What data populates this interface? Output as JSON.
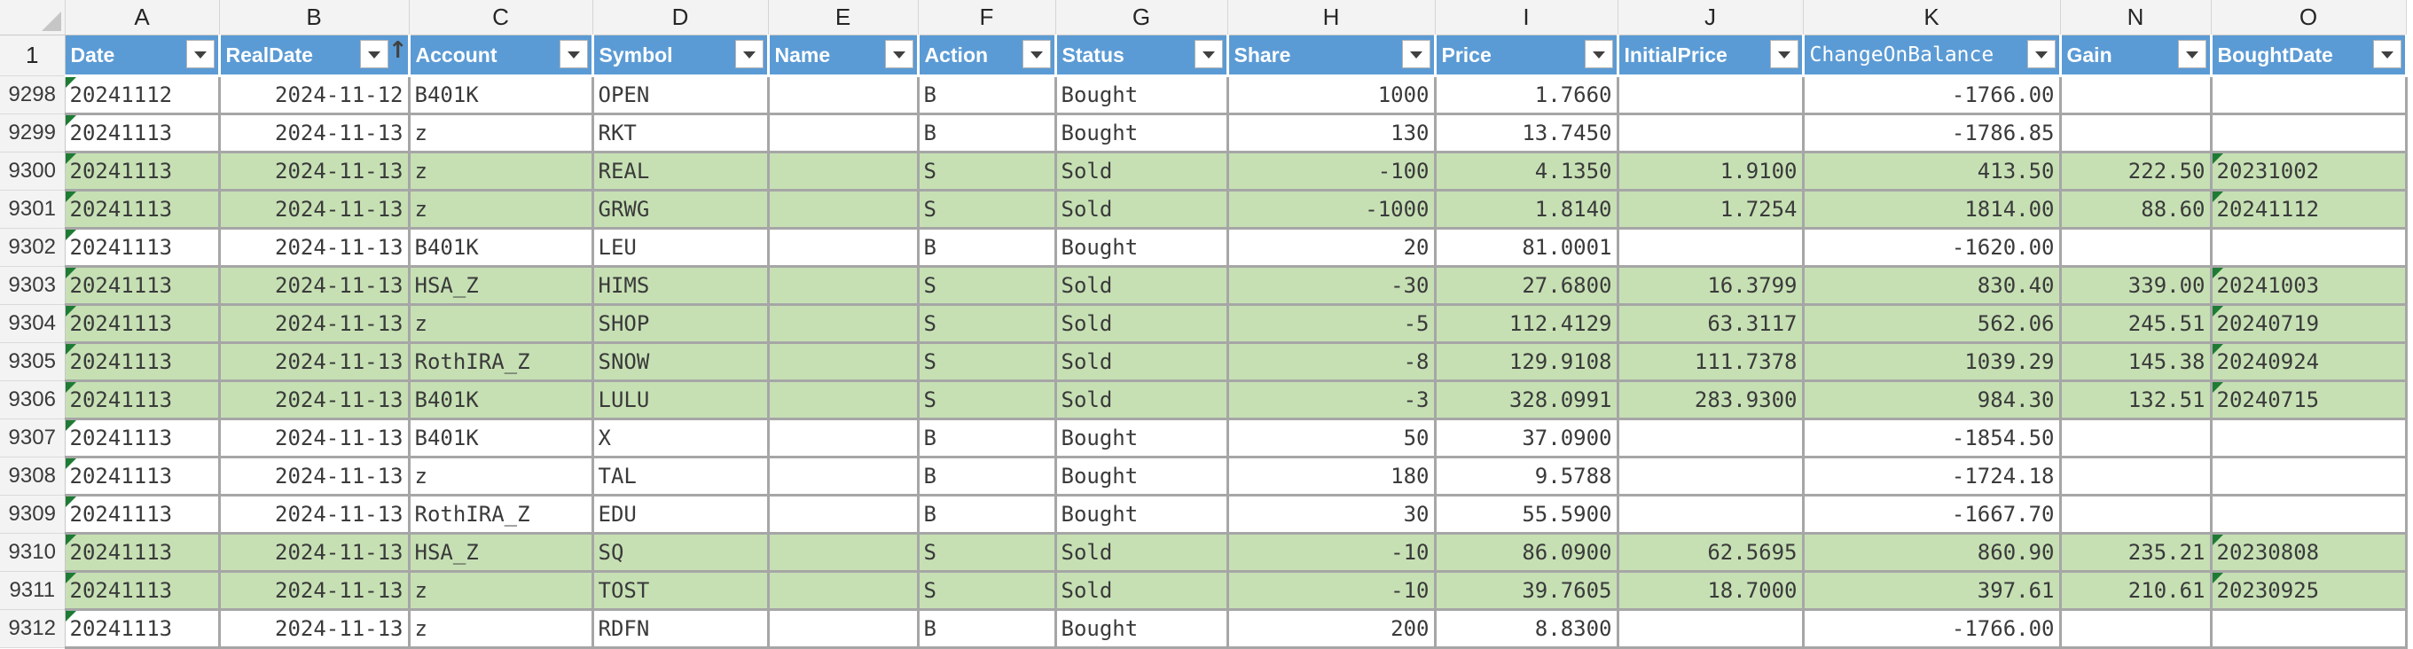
{
  "columns": [
    {
      "letter": "A",
      "header": "Date",
      "filter": true
    },
    {
      "letter": "B",
      "header": "RealDate",
      "filter": true,
      "sorted": "ascending"
    },
    {
      "letter": "C",
      "header": "Account",
      "filter": true
    },
    {
      "letter": "D",
      "header": "Symbol",
      "filter": true
    },
    {
      "letter": "E",
      "header": "Name",
      "filter": true
    },
    {
      "letter": "F",
      "header": "Action",
      "filter": true
    },
    {
      "letter": "G",
      "header": "Status",
      "filter": true
    },
    {
      "letter": "H",
      "header": "Share",
      "filter": true
    },
    {
      "letter": "I",
      "header": "Price",
      "filter": true
    },
    {
      "letter": "J",
      "header": "InitialPrice",
      "filter": true
    },
    {
      "letter": "K",
      "header": "ChangeOnBalance",
      "filter": true
    },
    {
      "letter": "N",
      "header": "Gain",
      "filter": true
    },
    {
      "letter": "O",
      "header": "BoughtDate",
      "filter": true
    }
  ],
  "header_row_number": "1",
  "rows": [
    {
      "num": "9298",
      "status_fill": "bought",
      "date": "20241112",
      "realdate": "2024-11-12",
      "account": "B401K",
      "symbol": "OPEN",
      "name": "",
      "action": "B",
      "status": "Bought",
      "share": "1000",
      "price": "1.7660",
      "initialprice": "",
      "changeonbalance": "-1766.00",
      "gain": "",
      "boughtdate": ""
    },
    {
      "num": "9299",
      "status_fill": "bought",
      "date": "20241113",
      "realdate": "2024-11-13",
      "account": "z",
      "symbol": "RKT",
      "name": "",
      "action": "B",
      "status": "Bought",
      "share": "130",
      "price": "13.7450",
      "initialprice": "",
      "changeonbalance": "-1786.85",
      "gain": "",
      "boughtdate": ""
    },
    {
      "num": "9300",
      "status_fill": "sold",
      "date": "20241113",
      "realdate": "2024-11-13",
      "account": "z",
      "symbol": "REAL",
      "name": "",
      "action": "S",
      "status": "Sold",
      "share": "-100",
      "price": "4.1350",
      "initialprice": "1.9100",
      "changeonbalance": "413.50",
      "gain": "222.50",
      "boughtdate": "20231002"
    },
    {
      "num": "9301",
      "status_fill": "sold",
      "date": "20241113",
      "realdate": "2024-11-13",
      "account": "z",
      "symbol": "GRWG",
      "name": "",
      "action": "S",
      "status": "Sold",
      "share": "-1000",
      "price": "1.8140",
      "initialprice": "1.7254",
      "changeonbalance": "1814.00",
      "gain": "88.60",
      "boughtdate": "20241112"
    },
    {
      "num": "9302",
      "status_fill": "bought",
      "date": "20241113",
      "realdate": "2024-11-13",
      "account": "B401K",
      "symbol": "LEU",
      "name": "",
      "action": "B",
      "status": "Bought",
      "share": "20",
      "price": "81.0001",
      "initialprice": "",
      "changeonbalance": "-1620.00",
      "gain": "",
      "boughtdate": ""
    },
    {
      "num": "9303",
      "status_fill": "sold",
      "date": "20241113",
      "realdate": "2024-11-13",
      "account": "HSA_Z",
      "symbol": "HIMS",
      "name": "",
      "action": "S",
      "status": "Sold",
      "share": "-30",
      "price": "27.6800",
      "initialprice": "16.3799",
      "changeonbalance": "830.40",
      "gain": "339.00",
      "boughtdate": "20241003"
    },
    {
      "num": "9304",
      "status_fill": "sold",
      "date": "20241113",
      "realdate": "2024-11-13",
      "account": "z",
      "symbol": "SHOP",
      "name": "",
      "action": "S",
      "status": "Sold",
      "share": "-5",
      "price": "112.4129",
      "initialprice": "63.3117",
      "changeonbalance": "562.06",
      "gain": "245.51",
      "boughtdate": "20240719"
    },
    {
      "num": "9305",
      "status_fill": "sold",
      "date": "20241113",
      "realdate": "2024-11-13",
      "account": "RothIRA_Z",
      "symbol": "SNOW",
      "name": "",
      "action": "S",
      "status": "Sold",
      "share": "-8",
      "price": "129.9108",
      "initialprice": "111.7378",
      "changeonbalance": "1039.29",
      "gain": "145.38",
      "boughtdate": "20240924"
    },
    {
      "num": "9306",
      "status_fill": "sold",
      "date": "20241113",
      "realdate": "2024-11-13",
      "account": "B401K",
      "symbol": "LULU",
      "name": "",
      "action": "S",
      "status": "Sold",
      "share": "-3",
      "price": "328.0991",
      "initialprice": "283.9300",
      "changeonbalance": "984.30",
      "gain": "132.51",
      "boughtdate": "20240715"
    },
    {
      "num": "9307",
      "status_fill": "bought",
      "date": "20241113",
      "realdate": "2024-11-13",
      "account": "B401K",
      "symbol": "X",
      "name": "",
      "action": "B",
      "status": "Bought",
      "share": "50",
      "price": "37.0900",
      "initialprice": "",
      "changeonbalance": "-1854.50",
      "gain": "",
      "boughtdate": ""
    },
    {
      "num": "9308",
      "status_fill": "bought",
      "date": "20241113",
      "realdate": "2024-11-13",
      "account": "z",
      "symbol": "TAL",
      "name": "",
      "action": "B",
      "status": "Bought",
      "share": "180",
      "price": "9.5788",
      "initialprice": "",
      "changeonbalance": "-1724.18",
      "gain": "",
      "boughtdate": ""
    },
    {
      "num": "9309",
      "status_fill": "bought",
      "date": "20241113",
      "realdate": "2024-11-13",
      "account": "RothIRA_Z",
      "symbol": "EDU",
      "name": "",
      "action": "B",
      "status": "Bought",
      "share": "30",
      "price": "55.5900",
      "initialprice": "",
      "changeonbalance": "-1667.70",
      "gain": "",
      "boughtdate": ""
    },
    {
      "num": "9310",
      "status_fill": "sold",
      "date": "20241113",
      "realdate": "2024-11-13",
      "account": "HSA_Z",
      "symbol": "SQ",
      "name": "",
      "action": "S",
      "status": "Sold",
      "share": "-10",
      "price": "86.0900",
      "initialprice": "62.5695",
      "changeonbalance": "860.90",
      "gain": "235.21",
      "boughtdate": "20230808"
    },
    {
      "num": "9311",
      "status_fill": "sold",
      "date": "20241113",
      "realdate": "2024-11-13",
      "account": "z",
      "symbol": "TOST",
      "name": "",
      "action": "S",
      "status": "Sold",
      "share": "-10",
      "price": "39.7605",
      "initialprice": "18.7000",
      "changeonbalance": "397.61",
      "gain": "210.61",
      "boughtdate": "20230925"
    },
    {
      "num": "9312",
      "status_fill": "bought",
      "date": "20241113",
      "realdate": "2024-11-13",
      "account": "z",
      "symbol": "RDFN",
      "name": "",
      "action": "B",
      "status": "Bought",
      "share": "200",
      "price": "8.8300",
      "initialprice": "",
      "changeonbalance": "-1766.00",
      "gain": "",
      "boughtdate": ""
    }
  ],
  "colors": {
    "header_blue": "#5b9bd5",
    "sold_green": "#c6e0b4",
    "grid_gray": "#a6a6a6",
    "error_triangle_green": "#1e7b34"
  }
}
